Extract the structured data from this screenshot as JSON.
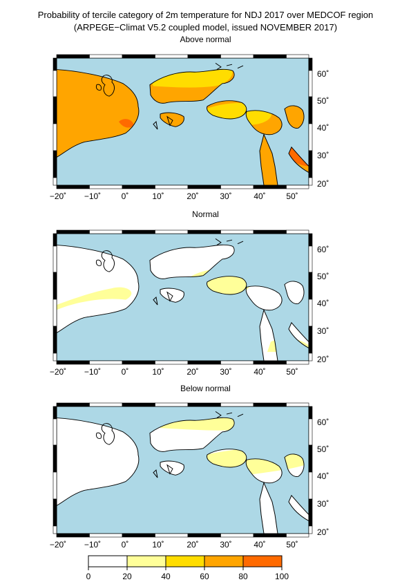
{
  "title": "Probability of tercile category of 2m temperature for NDJ 2017 over MEDCOF region",
  "subtitle": "(ARPEGE−Climat V5.2 coupled model, issued NOVEMBER  2017)",
  "panels": [
    {
      "label": "Above normal"
    },
    {
      "label": "Normal"
    },
    {
      "label": "Below normal"
    }
  ],
  "axes": {
    "lon_ticks": [
      "−20˚",
      "−10˚",
      "0˚",
      "10˚",
      "20˚",
      "30˚",
      "40˚",
      "50˚"
    ],
    "lat_ticks": [
      "60˚",
      "50˚",
      "40˚",
      "30˚",
      "20˚"
    ]
  },
  "colorbar": {
    "ticks": [
      "0",
      "20",
      "40",
      "60",
      "80",
      "100"
    ],
    "colors": [
      "#ffffff",
      "#ffff99",
      "#ffdd00",
      "#ffa500",
      "#ff6a00"
    ]
  },
  "colors": {
    "sea": "#add8e6",
    "land_0_20": "#ffffff",
    "land_20_40": "#ffff99",
    "land_40_60": "#ffdd00",
    "land_60_80": "#ffa500",
    "land_80_100": "#ff6a00"
  }
}
